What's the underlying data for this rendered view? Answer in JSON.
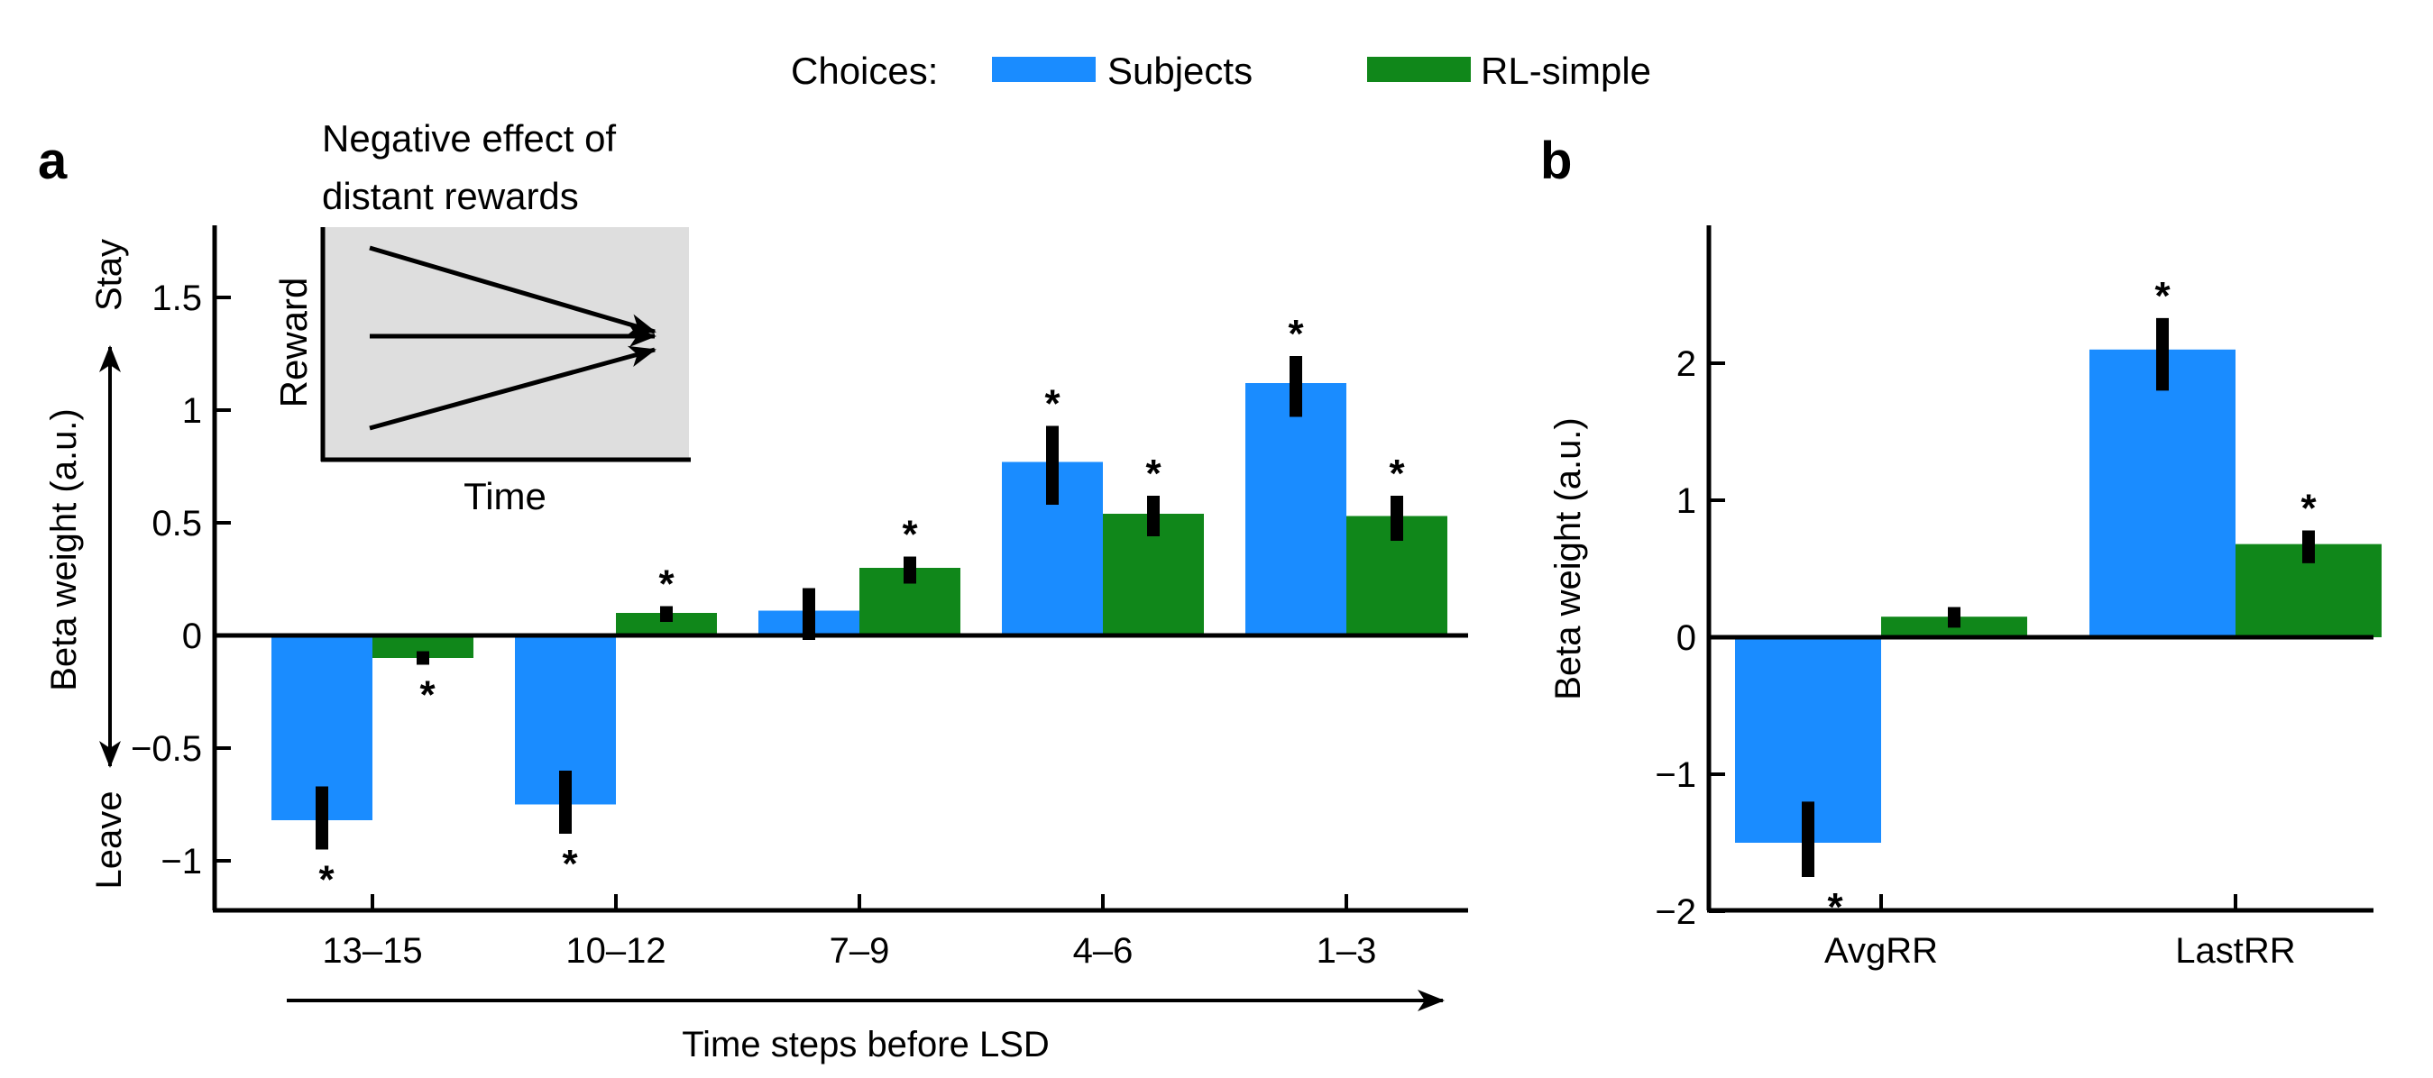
{
  "legend": {
    "prefix": "Choices:",
    "series": [
      {
        "name": "Subjects",
        "color": "#1a8cff"
      },
      {
        "name": "RL-simple",
        "color": "#10871a"
      }
    ]
  },
  "panel_a": {
    "label": "a",
    "stay_label": "Stay",
    "leave_label": "Leave",
    "xarrow_label": "Time steps before LSD",
    "inset": {
      "title_line1": "Negative effect of",
      "title_line2": "distant rewards",
      "ylabel": "Reward",
      "xlabel": "Time"
    }
  },
  "panel_b": {
    "label": "b"
  },
  "chart_data": [
    {
      "type": "bar",
      "panel": "a",
      "title": "",
      "xlabel": "Time steps before LSD",
      "ylabel": "Beta weight (a.u.)",
      "ylim": [
        -1.2,
        1.8
      ],
      "yticks": [
        -1,
        -0.5,
        0,
        0.5,
        1,
        1.5
      ],
      "yticklabels": [
        "−1",
        "−0.5",
        "0",
        "0.5",
        "1",
        "1.5"
      ],
      "categories": [
        "13–15",
        "10–12",
        "7–9",
        "4–6",
        "1–3"
      ],
      "series": [
        {
          "name": "Subjects",
          "color": "#1a8cff",
          "values": [
            -0.82,
            -0.75,
            0.11,
            0.77,
            1.12
          ],
          "err_low": [
            -0.95,
            -0.88,
            -0.02,
            0.58,
            0.97
          ],
          "err_high": [
            -0.67,
            -0.6,
            0.21,
            0.93,
            1.24
          ],
          "significant": [
            true,
            true,
            false,
            true,
            true
          ]
        },
        {
          "name": "RL-simple",
          "color": "#10871a",
          "values": [
            -0.1,
            0.1,
            0.3,
            0.54,
            0.53
          ],
          "err_low": [
            -0.13,
            0.06,
            0.23,
            0.44,
            0.42
          ],
          "err_high": [
            -0.07,
            0.13,
            0.35,
            0.62,
            0.62
          ],
          "significant": [
            true,
            true,
            true,
            true,
            true
          ]
        }
      ],
      "star_symbol": "*"
    },
    {
      "type": "bar",
      "panel": "b",
      "title": "",
      "xlabel": "",
      "ylabel": "Beta weight (a.u.)",
      "ylim": [
        -2,
        3
      ],
      "yticks": [
        -2,
        -1,
        0,
        1,
        2
      ],
      "yticklabels": [
        "−2",
        "−1",
        "0",
        "1",
        "2"
      ],
      "categories": [
        "AvgRR",
        "LastRR"
      ],
      "series": [
        {
          "name": "Subjects",
          "color": "#1a8cff",
          "values": [
            -1.5,
            2.1
          ],
          "err_low": [
            -1.75,
            1.8
          ],
          "err_high": [
            -1.2,
            2.33
          ],
          "significant": [
            true,
            true
          ]
        },
        {
          "name": "RL-simple",
          "color": "#10871a",
          "values": [
            0.15,
            0.68
          ],
          "err_low": [
            0.07,
            0.54
          ],
          "err_high": [
            0.22,
            0.78
          ],
          "significant": [
            false,
            true
          ]
        }
      ],
      "star_symbol": "*"
    }
  ]
}
